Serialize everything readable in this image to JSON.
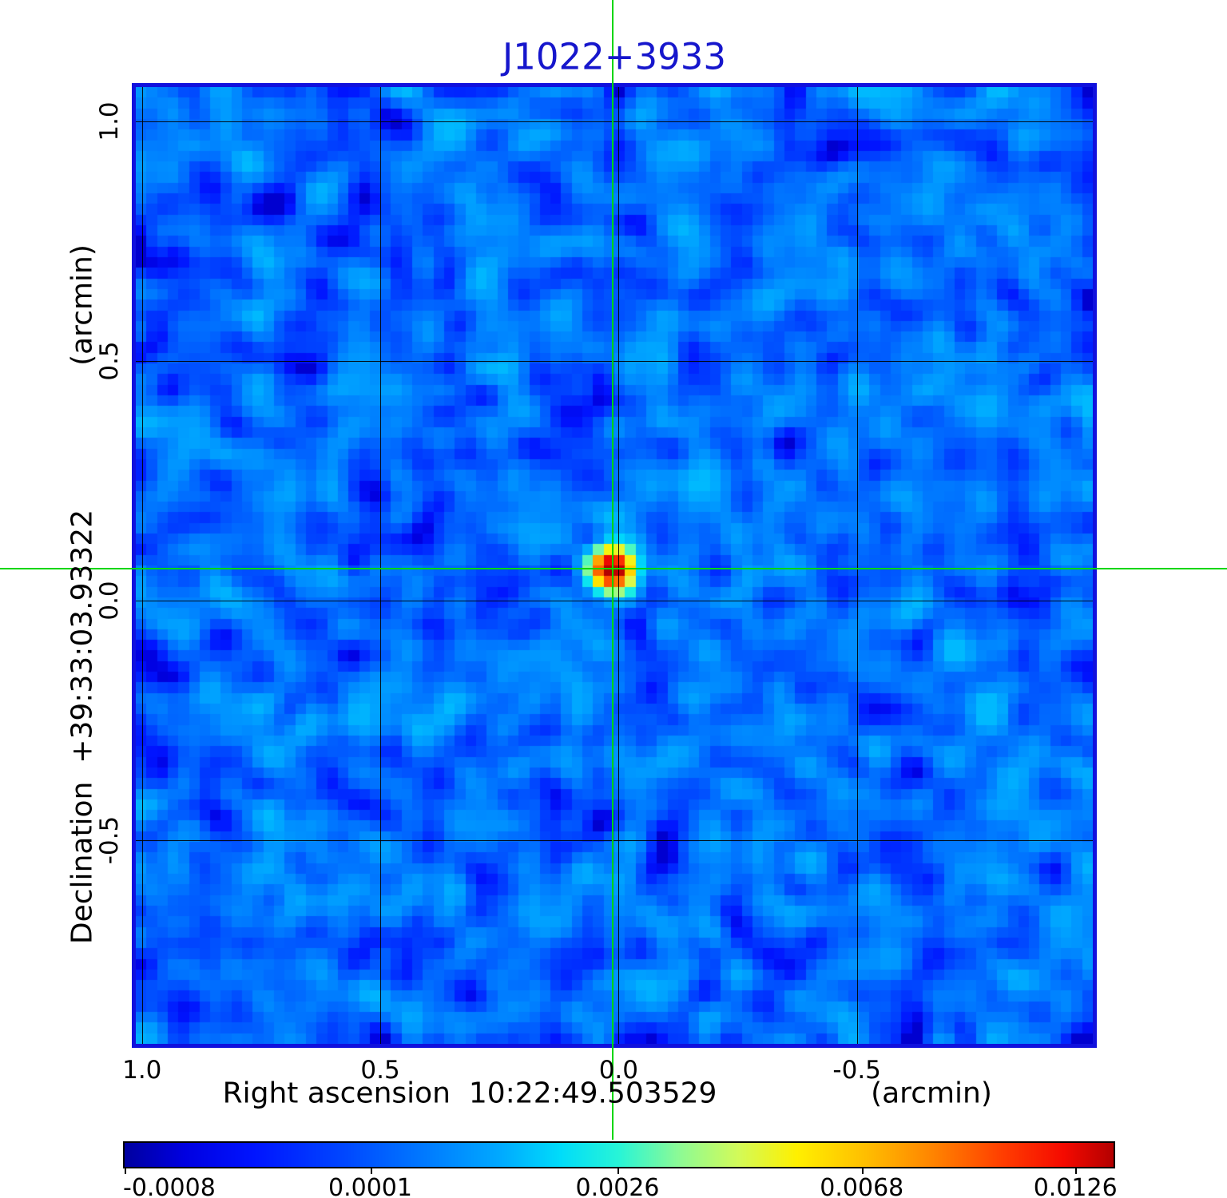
{
  "title": {
    "text": "J1022+3933",
    "color": "#1616cc"
  },
  "axes": {
    "x": {
      "label": "Right ascension  10:22:49.503529",
      "unit": "(arcmin)",
      "tick_labels": [
        "1.0",
        "0.5",
        "0.0",
        "-0.5"
      ],
      "tick_values": [
        1.0,
        0.5,
        0.0,
        -0.5
      ]
    },
    "y": {
      "label": "Declination  +39:33:03.93322",
      "unit": "(arcmin)",
      "tick_labels": [
        "1.0",
        "0.5",
        "0.0",
        "-0.5"
      ],
      "tick_values": [
        1.0,
        0.5,
        0.0,
        -0.5
      ]
    }
  },
  "colorbar": {
    "tick_labels": [
      "-0.0008",
      "0.0001",
      "0.0026",
      "0.0068",
      "0.0126"
    ],
    "tick_values": [
      -0.0008,
      0.0001,
      0.0026,
      0.0068,
      0.0126
    ],
    "tick_positions": [
      0.002,
      0.25,
      0.5,
      0.747,
      0.963
    ]
  },
  "chart_data": {
    "type": "heatmap",
    "title": "J1022+3933",
    "xlabel": "Right ascension  10:22:49.503529",
    "xunit": "(arcmin)",
    "ylabel": "Declination  +39:33:03.93322",
    "yunit": "(arcmin)",
    "xlim": [
      1.013,
      -0.995
    ],
    "ylim": [
      -0.925,
      1.072
    ],
    "x_ticks": [
      1.0,
      0.5,
      0.0,
      -0.5
    ],
    "y_ticks": [
      1.0,
      0.5,
      0.0,
      -0.5
    ],
    "grid": true,
    "grid_color": "#000000",
    "border_color": "#1111dd",
    "value_scale": {
      "type": "sqrt",
      "vmin": -0.0008,
      "vmax": 0.0134
    },
    "colorbar_ticks": [
      -0.0008,
      0.0001,
      0.0026,
      0.0068,
      0.0126
    ],
    "crosshair": {
      "ra_arcmin": 0.013,
      "dec_arcmin": 0.066,
      "color": "#00d600"
    },
    "point_source": {
      "ra_arcmin": 0.013,
      "dec_arcmin": 0.066,
      "peak": 0.0152,
      "sigma_cells": 1.3
    },
    "background_noise": {
      "mean": 0.0004,
      "sigma": 0.00045,
      "grid_cells": 90,
      "seed": 20
    },
    "colormap_stops": [
      [
        0.0,
        "#0000a0"
      ],
      [
        0.06,
        "#0000e1"
      ],
      [
        0.13,
        "#0014ff"
      ],
      [
        0.22,
        "#0046ff"
      ],
      [
        0.3,
        "#0078ff"
      ],
      [
        0.38,
        "#00aaff"
      ],
      [
        0.44,
        "#00dcfa"
      ],
      [
        0.5,
        "#28f5d7"
      ],
      [
        0.56,
        "#8cfa96"
      ],
      [
        0.62,
        "#d2fa5a"
      ],
      [
        0.68,
        "#fff000"
      ],
      [
        0.75,
        "#ffbe00"
      ],
      [
        0.82,
        "#ff8200"
      ],
      [
        0.89,
        "#ff3c00"
      ],
      [
        0.95,
        "#f50a00"
      ],
      [
        1.0,
        "#b40000"
      ]
    ]
  }
}
